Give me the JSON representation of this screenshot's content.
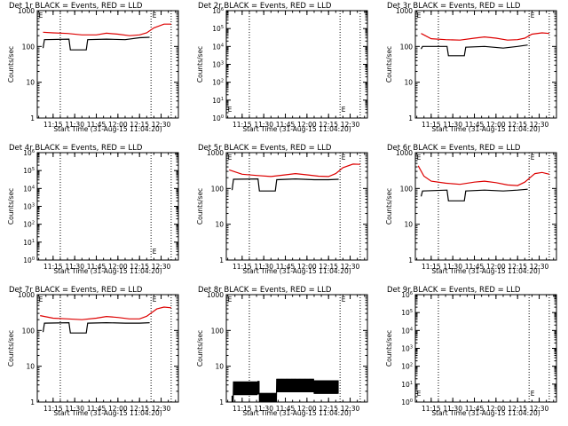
{
  "chart_data": [
    {
      "id": "d1",
      "type": "line",
      "title": "Det 1r BLACK = Events, RED = LLD",
      "ylabel": "Counts/sec",
      "xlabel": "Start Time (31-Aug-15 11:04:20)",
      "yscale": "log",
      "ylim": [
        1,
        1000
      ],
      "xlim": [
        "11:04",
        "12:42"
      ],
      "x_ticks": [
        "11:15",
        "11:30",
        "11:45",
        "12:00",
        "12:15",
        "12:30"
      ],
      "y_ticks": [
        "1",
        "10",
        "100",
        "1000"
      ],
      "vlines": [
        "11:20",
        "12:23",
        "12:37"
      ],
      "markers": [
        {
          "text": "E",
          "x": "11:05",
          "y": 1000
        },
        {
          "text": "E",
          "x": "12:24",
          "y": 1000
        }
      ],
      "series": [
        {
          "color": "#000000",
          "role": "Events",
          "points": [
            [
              "11:08",
              90
            ],
            [
              "11:09",
              155
            ],
            [
              "11:26",
              160
            ],
            [
              "11:27",
              80
            ],
            [
              "11:38",
              80
            ],
            [
              "11:39",
              155
            ],
            [
              "11:52",
              160
            ],
            [
              "12:05",
              155
            ],
            [
              "12:15",
              175
            ],
            [
              "12:22",
              180
            ]
          ]
        },
        {
          "color": "#dd0000",
          "role": "LLD",
          "points": [
            [
              "11:08",
              250
            ],
            [
              "11:15",
              240
            ],
            [
              "11:25",
              230
            ],
            [
              "11:35",
              210
            ],
            [
              "11:45",
              210
            ],
            [
              "11:52",
              235
            ],
            [
              "12:00",
              220
            ],
            [
              "12:08",
              200
            ],
            [
              "12:15",
              210
            ],
            [
              "12:20",
              240
            ],
            [
              "12:25",
              330
            ],
            [
              "12:32",
              420
            ],
            [
              "12:37",
              420
            ]
          ]
        }
      ]
    },
    {
      "id": "d2",
      "type": "line",
      "title": "Det 2r BLACK = Events, RED = LLD",
      "ylabel": "Counts/sec",
      "xlabel": "Start Time (31-Aug-15 11:04:20)",
      "yscale": "log",
      "ylim": [
        1,
        1000000
      ],
      "xlim": [
        "11:04",
        "12:42"
      ],
      "x_ticks": [
        "11:15",
        "11:30",
        "11:45",
        "12:00",
        "12:15",
        "12:30"
      ],
      "y_ticks": [
        "10^0",
        "10^1",
        "10^2",
        "10^3",
        "10^4",
        "10^5",
        "10^6"
      ],
      "vlines": [
        "11:20",
        "12:23",
        "12:37"
      ],
      "markers": [
        {
          "text": "E",
          "x": "11:05",
          "y": 5
        },
        {
          "text": "E",
          "x": "12:24",
          "y": 5
        }
      ],
      "series": []
    },
    {
      "id": "d3",
      "type": "line",
      "title": "Det 3r BLACK = Events, RED = LLD",
      "ylabel": "Counts/sec",
      "xlabel": "Start Time (31-Aug-15 11:04:20)",
      "yscale": "log",
      "ylim": [
        1,
        1000
      ],
      "xlim": [
        "11:04",
        "12:42"
      ],
      "x_ticks": [
        "11:15",
        "11:30",
        "11:45",
        "12:00",
        "12:15",
        "12:30"
      ],
      "y_ticks": [
        "1",
        "10",
        "100",
        "1000"
      ],
      "vlines": [
        "11:20",
        "12:23",
        "12:37"
      ],
      "markers": [
        {
          "text": "E",
          "x": "11:05",
          "y": 1000
        },
        {
          "text": "E",
          "x": "12:24",
          "y": 1000
        }
      ],
      "series": [
        {
          "color": "#000000",
          "role": "Events",
          "points": [
            [
              "11:08",
              85
            ],
            [
              "11:09",
              100
            ],
            [
              "11:26",
              100
            ],
            [
              "11:27",
              55
            ],
            [
              "11:38",
              55
            ],
            [
              "11:39",
              95
            ],
            [
              "11:52",
              100
            ],
            [
              "12:05",
              90
            ],
            [
              "12:15",
              100
            ],
            [
              "12:22",
              110
            ]
          ]
        },
        {
          "color": "#dd0000",
          "role": "LLD",
          "points": [
            [
              "11:08",
              230
            ],
            [
              "11:15",
              165
            ],
            [
              "11:25",
              155
            ],
            [
              "11:35",
              150
            ],
            [
              "11:45",
              170
            ],
            [
              "11:52",
              185
            ],
            [
              "12:00",
              170
            ],
            [
              "12:08",
              150
            ],
            [
              "12:15",
              155
            ],
            [
              "12:20",
              170
            ],
            [
              "12:25",
              220
            ],
            [
              "12:32",
              240
            ],
            [
              "12:37",
              230
            ]
          ]
        }
      ]
    },
    {
      "id": "d4",
      "type": "line",
      "title": "Det 4r BLACK = Events, RED = LLD",
      "ylabel": "Counts/sec",
      "xlabel": "Start Time (31-Aug-15 11:04:20)",
      "yscale": "log",
      "ylim": [
        1,
        1000000
      ],
      "xlim": [
        "11:04",
        "12:42"
      ],
      "x_ticks": [
        "11:15",
        "11:30",
        "11:45",
        "12:00",
        "12:15",
        "12:30"
      ],
      "y_ticks": [
        "10^0",
        "10^1",
        "10^2",
        "10^3",
        "10^4",
        "10^5",
        "10^6"
      ],
      "vlines": [
        "11:20",
        "12:23",
        "12:37"
      ],
      "markers": [
        {
          "text": "E",
          "x": "12:24",
          "y": 5
        }
      ],
      "series": []
    },
    {
      "id": "d5",
      "type": "line",
      "title": "Det 5r BLACK = Events, RED = LLD",
      "ylabel": "Counts/sec",
      "xlabel": "Start Time (31-Aug-15 11:04:20)",
      "yscale": "log",
      "ylim": [
        1,
        1000
      ],
      "xlim": [
        "11:04",
        "12:42"
      ],
      "x_ticks": [
        "11:15",
        "11:30",
        "11:45",
        "12:00",
        "12:15",
        "12:30"
      ],
      "y_ticks": [
        "1",
        "10",
        "100",
        "1000"
      ],
      "vlines": [
        "11:20",
        "12:23",
        "12:37"
      ],
      "markers": [
        {
          "text": "E",
          "x": "11:05",
          "y": 1000
        },
        {
          "text": "E",
          "x": "12:24",
          "y": 1000
        }
      ],
      "series": [
        {
          "color": "#000000",
          "role": "Events",
          "points": [
            [
              "11:08",
              90
            ],
            [
              "11:09",
              180
            ],
            [
              "11:26",
              185
            ],
            [
              "11:27",
              85
            ],
            [
              "11:38",
              85
            ],
            [
              "11:39",
              175
            ],
            [
              "11:52",
              185
            ],
            [
              "12:05",
              175
            ],
            [
              "12:15",
              175
            ],
            [
              "12:22",
              180
            ]
          ]
        },
        {
          "color": "#dd0000",
          "role": "LLD",
          "points": [
            [
              "11:06",
              330
            ],
            [
              "11:15",
              250
            ],
            [
              "11:25",
              230
            ],
            [
              "11:35",
              215
            ],
            [
              "11:45",
              240
            ],
            [
              "11:52",
              260
            ],
            [
              "12:00",
              240
            ],
            [
              "12:08",
              220
            ],
            [
              "12:15",
              215
            ],
            [
              "12:20",
              260
            ],
            [
              "12:25",
              380
            ],
            [
              "12:32",
              480
            ],
            [
              "12:37",
              470
            ]
          ]
        }
      ]
    },
    {
      "id": "d6",
      "type": "line",
      "title": "Det 6r BLACK = Events, RED = LLD",
      "ylabel": "Counts/sec",
      "xlabel": "Start Time (31-Aug-15 11:04:20)",
      "yscale": "log",
      "ylim": [
        1,
        1000
      ],
      "xlim": [
        "11:04",
        "12:42"
      ],
      "x_ticks": [
        "11:15",
        "11:30",
        "11:45",
        "12:00",
        "12:15",
        "12:30"
      ],
      "y_ticks": [
        "1",
        "10",
        "100",
        "1000"
      ],
      "vlines": [
        "11:20",
        "12:23",
        "12:37"
      ],
      "markers": [
        {
          "text": "E",
          "x": "11:05",
          "y": 1000
        },
        {
          "text": "E",
          "x": "12:24",
          "y": 1000
        }
      ],
      "series": [
        {
          "color": "#000000",
          "role": "Events",
          "points": [
            [
              "11:08",
              60
            ],
            [
              "11:09",
              85
            ],
            [
              "11:26",
              90
            ],
            [
              "11:27",
              45
            ],
            [
              "11:38",
              45
            ],
            [
              "11:39",
              85
            ],
            [
              "11:52",
              90
            ],
            [
              "12:05",
              85
            ],
            [
              "12:15",
              90
            ],
            [
              "12:22",
              95
            ]
          ]
        },
        {
          "color": "#dd0000",
          "role": "LLD",
          "points": [
            [
              "11:06",
              430
            ],
            [
              "11:10",
              220
            ],
            [
              "11:15",
              160
            ],
            [
              "11:25",
              140
            ],
            [
              "11:35",
              130
            ],
            [
              "11:45",
              150
            ],
            [
              "11:52",
              160
            ],
            [
              "12:00",
              145
            ],
            [
              "12:08",
              125
            ],
            [
              "12:15",
              120
            ],
            [
              "12:20",
              150
            ],
            [
              "12:27",
              260
            ],
            [
              "12:32",
              280
            ],
            [
              "12:37",
              250
            ]
          ]
        }
      ]
    },
    {
      "id": "d7",
      "type": "line",
      "title": "Det 7r BLACK = Events, RED = LLD",
      "ylabel": "Counts/sec",
      "xlabel": "Start Time (31-Aug-15 11:04:20)",
      "yscale": "log",
      "ylim": [
        1,
        1000
      ],
      "xlim": [
        "11:04",
        "12:42"
      ],
      "x_ticks": [
        "11:15",
        "11:30",
        "11:45",
        "12:00",
        "12:15",
        "12:30"
      ],
      "y_ticks": [
        "1",
        "10",
        "100",
        "1000"
      ],
      "vlines": [
        "11:20",
        "12:23",
        "12:37"
      ],
      "markers": [
        {
          "text": "E",
          "x": "11:05",
          "y": 1000
        },
        {
          "text": "E",
          "x": "12:24",
          "y": 1000
        }
      ],
      "series": [
        {
          "color": "#000000",
          "role": "Events",
          "points": [
            [
              "11:08",
              90
            ],
            [
              "11:09",
              160
            ],
            [
              "11:26",
              165
            ],
            [
              "11:27",
              85
            ],
            [
              "11:38",
              85
            ],
            [
              "11:39",
              160
            ],
            [
              "11:52",
              165
            ],
            [
              "12:05",
              160
            ],
            [
              "12:15",
              160
            ],
            [
              "12:22",
              165
            ]
          ]
        },
        {
          "color": "#dd0000",
          "role": "LLD",
          "points": [
            [
              "11:06",
              260
            ],
            [
              "11:15",
              220
            ],
            [
              "11:25",
              210
            ],
            [
              "11:35",
              200
            ],
            [
              "11:45",
              220
            ],
            [
              "11:52",
              245
            ],
            [
              "12:00",
              230
            ],
            [
              "12:08",
              210
            ],
            [
              "12:15",
              210
            ],
            [
              "12:20",
              250
            ],
            [
              "12:27",
              400
            ],
            [
              "12:32",
              450
            ],
            [
              "12:37",
              430
            ]
          ]
        }
      ]
    },
    {
      "id": "d8",
      "type": "line",
      "title": "Det 8r BLACK = Events, RED = LLD",
      "ylabel": "Counts/sec",
      "xlabel": "Start Time (31-Aug-15 11:04:20)",
      "yscale": "log",
      "ylim": [
        1,
        1000
      ],
      "xlim": [
        "11:04",
        "12:42"
      ],
      "x_ticks": [
        "11:15",
        "11:30",
        "11:45",
        "12:00",
        "12:15",
        "12:30"
      ],
      "y_ticks": [
        "1",
        "10",
        "100",
        "1000"
      ],
      "vlines": [
        "11:20",
        "12:23",
        "12:37"
      ],
      "markers": [
        {
          "text": "E",
          "x": "11:05",
          "y": 1000
        },
        {
          "text": "E",
          "x": "12:24",
          "y": 1000
        }
      ],
      "series": [
        {
          "color": "#000000",
          "role": "Events",
          "noisy": true,
          "points": [
            [
              "11:08",
              1
            ],
            [
              "11:09",
              2.5
            ],
            [
              "11:26",
              2.6
            ],
            [
              "11:27",
              1.2
            ],
            [
              "11:38",
              1.2
            ],
            [
              "11:39",
              3
            ],
            [
              "11:52",
              3
            ],
            [
              "12:05",
              2.7
            ],
            [
              "12:15",
              2.7
            ],
            [
              "12:22",
              2.8
            ]
          ]
        }
      ]
    },
    {
      "id": "d9",
      "type": "line",
      "title": "Det 9r BLACK = Events, RED = LLD",
      "ylabel": "Counts/sec",
      "xlabel": "Start Time (31-Aug-15 11:04:20)",
      "yscale": "log",
      "ylim": [
        1,
        1000000
      ],
      "xlim": [
        "11:04",
        "12:42"
      ],
      "x_ticks": [
        "11:15",
        "11:30",
        "11:45",
        "12:00",
        "12:15",
        "12:30"
      ],
      "y_ticks": [
        "10^0",
        "10^1",
        "10^2",
        "10^3",
        "10^4",
        "10^5",
        "10^6"
      ],
      "vlines": [
        "11:20",
        "12:23",
        "12:37"
      ],
      "markers": [
        {
          "text": "E",
          "x": "11:05",
          "y": 5
        },
        {
          "text": "E",
          "x": "12:24",
          "y": 5
        }
      ],
      "series": []
    }
  ]
}
